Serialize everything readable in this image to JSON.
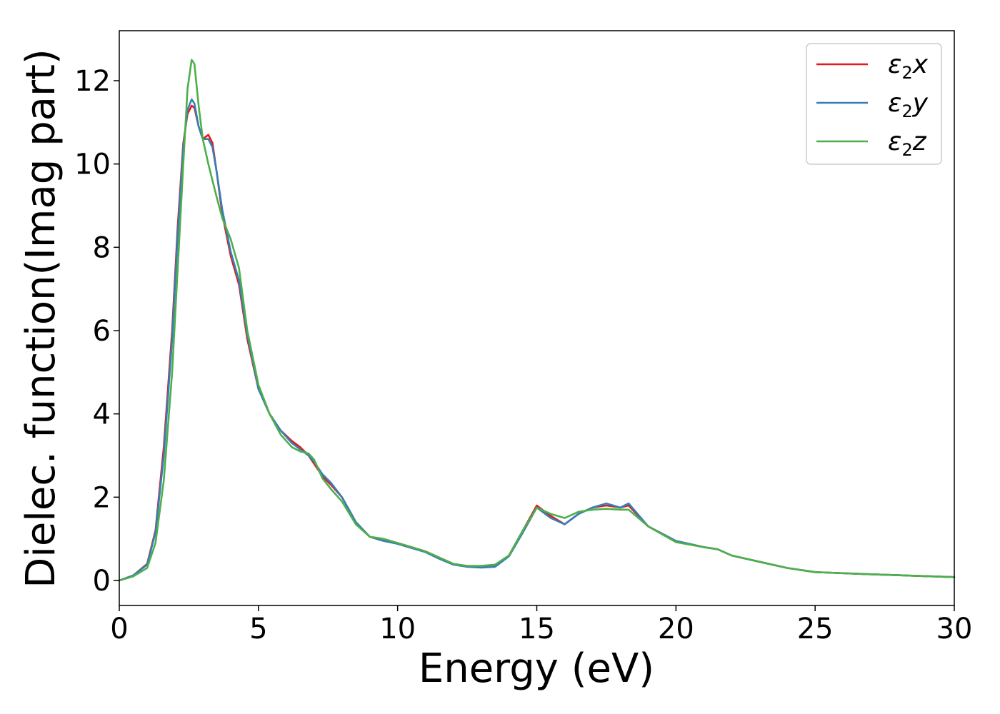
{
  "chart_data": {
    "type": "line",
    "title": "",
    "xlabel": "Energy (eV)",
    "ylabel": "Dielec. function(Imag part)",
    "xlim": [
      0,
      30
    ],
    "ylim": [
      -0.6,
      13.2
    ],
    "xticks": [
      0,
      5,
      10,
      15,
      20,
      25,
      30
    ],
    "yticks": [
      0,
      2,
      4,
      6,
      8,
      10,
      12
    ],
    "grid": false,
    "legend_position": "top-right",
    "series": [
      {
        "name": "ε2x",
        "legend": {
          "base": "ε",
          "sub": "2",
          "suffix": "x"
        },
        "color": "#e41a1c",
        "x": [
          0,
          0.5,
          1.0,
          1.3,
          1.6,
          1.9,
          2.1,
          2.3,
          2.45,
          2.6,
          2.7,
          2.85,
          3.0,
          3.2,
          3.35,
          3.5,
          3.7,
          4.0,
          4.3,
          4.6,
          5.0,
          5.4,
          5.8,
          6.2,
          6.5,
          6.8,
          7.0,
          7.3,
          7.6,
          8.0,
          8.5,
          9.0,
          9.5,
          10.0,
          10.5,
          11.0,
          11.5,
          12.0,
          12.5,
          13.0,
          13.5,
          14.0,
          14.5,
          15.0,
          15.5,
          16.0,
          16.5,
          17.0,
          17.5,
          18.0,
          18.3,
          19.0,
          20.0,
          21.0,
          21.5,
          22.0,
          23.0,
          24.0,
          25.0,
          27.0,
          30.0
        ],
        "values": [
          0.0,
          0.12,
          0.4,
          1.2,
          3.2,
          6.0,
          8.5,
          10.5,
          11.2,
          11.4,
          11.35,
          10.9,
          10.6,
          10.7,
          10.5,
          9.8,
          8.8,
          7.8,
          7.1,
          5.8,
          4.6,
          4.0,
          3.6,
          3.35,
          3.2,
          3.0,
          2.8,
          2.5,
          2.3,
          2.0,
          1.4,
          1.05,
          0.95,
          0.9,
          0.8,
          0.7,
          0.55,
          0.4,
          0.35,
          0.33,
          0.35,
          0.6,
          1.2,
          1.8,
          1.55,
          1.35,
          1.6,
          1.75,
          1.8,
          1.75,
          1.8,
          1.3,
          0.95,
          0.8,
          0.75,
          0.6,
          0.45,
          0.3,
          0.2,
          0.15,
          0.08
        ]
      },
      {
        "name": "ε2y",
        "legend": {
          "base": "ε",
          "sub": "2",
          "suffix": "y"
        },
        "color": "#377eb8",
        "x": [
          0,
          0.5,
          1.0,
          1.3,
          1.6,
          1.9,
          2.1,
          2.3,
          2.45,
          2.6,
          2.7,
          2.85,
          3.0,
          3.2,
          3.35,
          3.5,
          3.7,
          4.0,
          4.3,
          4.6,
          5.0,
          5.4,
          5.8,
          6.2,
          6.5,
          6.8,
          7.0,
          7.3,
          7.6,
          8.0,
          8.5,
          9.0,
          9.5,
          10.0,
          10.5,
          11.0,
          11.5,
          12.0,
          12.5,
          13.0,
          13.5,
          14.0,
          14.5,
          15.0,
          15.5,
          16.0,
          16.5,
          17.0,
          17.5,
          18.0,
          18.3,
          19.0,
          20.0,
          21.0,
          21.5,
          22.0,
          23.0,
          24.0,
          25.0,
          27.0,
          30.0
        ],
        "values": [
          0.0,
          0.12,
          0.38,
          1.15,
          3.0,
          5.8,
          8.3,
          10.4,
          11.3,
          11.55,
          11.45,
          10.9,
          10.6,
          10.6,
          10.4,
          9.8,
          8.9,
          7.9,
          7.2,
          5.9,
          4.6,
          4.0,
          3.6,
          3.3,
          3.15,
          3.0,
          2.85,
          2.55,
          2.35,
          2.0,
          1.4,
          1.05,
          0.95,
          0.88,
          0.78,
          0.68,
          0.52,
          0.38,
          0.33,
          0.31,
          0.33,
          0.58,
          1.15,
          1.75,
          1.5,
          1.35,
          1.6,
          1.75,
          1.85,
          1.75,
          1.85,
          1.3,
          0.95,
          0.8,
          0.75,
          0.6,
          0.45,
          0.3,
          0.2,
          0.15,
          0.08
        ]
      },
      {
        "name": "ε2z",
        "legend": {
          "base": "ε",
          "sub": "2",
          "suffix": "z"
        },
        "color": "#4daf4a",
        "x": [
          0,
          0.5,
          1.0,
          1.3,
          1.6,
          1.9,
          2.1,
          2.3,
          2.45,
          2.6,
          2.7,
          2.85,
          3.0,
          3.2,
          3.35,
          3.5,
          3.7,
          4.0,
          4.3,
          4.6,
          5.0,
          5.4,
          5.8,
          6.2,
          6.5,
          6.8,
          7.0,
          7.3,
          7.6,
          8.0,
          8.5,
          9.0,
          9.5,
          10.0,
          10.5,
          11.0,
          11.5,
          12.0,
          12.5,
          13.0,
          13.5,
          14.0,
          14.5,
          15.0,
          15.5,
          16.0,
          16.5,
          17.0,
          17.5,
          18.0,
          18.3,
          19.0,
          20.0,
          21.0,
          21.5,
          22.0,
          23.0,
          24.0,
          25.0,
          27.0,
          30.0
        ],
        "values": [
          0.0,
          0.1,
          0.3,
          0.9,
          2.4,
          5.0,
          7.5,
          10.0,
          11.8,
          12.5,
          12.4,
          11.4,
          10.6,
          10.0,
          9.6,
          9.2,
          8.7,
          8.2,
          7.5,
          6.0,
          4.7,
          4.0,
          3.5,
          3.2,
          3.1,
          3.05,
          2.9,
          2.45,
          2.2,
          1.9,
          1.35,
          1.05,
          1.0,
          0.9,
          0.8,
          0.7,
          0.55,
          0.4,
          0.35,
          0.35,
          0.38,
          0.6,
          1.2,
          1.75,
          1.6,
          1.5,
          1.65,
          1.7,
          1.72,
          1.7,
          1.7,
          1.3,
          0.92,
          0.8,
          0.75,
          0.6,
          0.45,
          0.3,
          0.2,
          0.15,
          0.08
        ]
      }
    ]
  }
}
